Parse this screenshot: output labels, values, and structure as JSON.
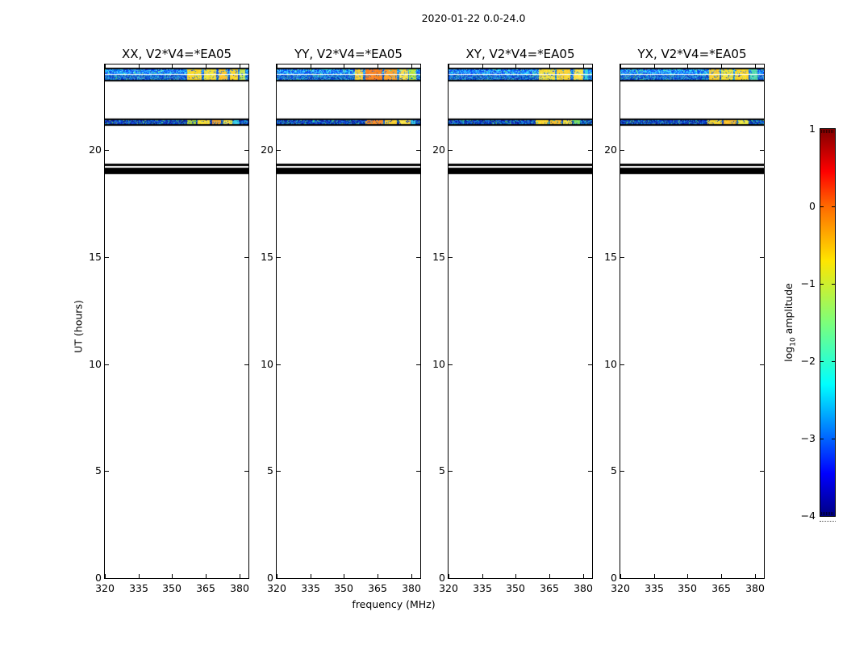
{
  "chart_data": {
    "type": "heatmap",
    "suptitle": "2020-01-22 0.0-24.0",
    "xlabel": "frequency (MHz)",
    "ylabel": "UT (hours)",
    "xlim": [
      320,
      384
    ],
    "ylim": [
      0,
      24
    ],
    "x_ticks": [
      320,
      335,
      350,
      365,
      380
    ],
    "x_tick_labels": [
      "320",
      "335",
      "350",
      "365",
      "380"
    ],
    "y_ticks": [
      0,
      5,
      10,
      15,
      20
    ],
    "y_tick_labels": [
      "0",
      "5",
      "10",
      "15",
      "20"
    ],
    "grid": false,
    "background_color": "#ffffff",
    "colorbar": {
      "label_prefix": "log",
      "label_sub": "10",
      "label_suffix": " amplitude",
      "colormap": "jet",
      "vmin": -4,
      "vmax": 1,
      "ticks": [
        1,
        0,
        -1,
        -2,
        -3,
        -4
      ],
      "tick_labels": [
        "1",
        "0",
        "−1",
        "−2",
        "−3",
        "−4"
      ],
      "gradient_stops": [
        [
          0.0,
          "#000083"
        ],
        [
          0.11,
          "#0000ff"
        ],
        [
          0.34,
          "#00ffff"
        ],
        [
          0.5,
          "#7dff7a"
        ],
        [
          0.66,
          "#ffe500"
        ],
        [
          0.8,
          "#ff6a00"
        ],
        [
          0.89,
          "#ff0000"
        ],
        [
          1.0,
          "#800000"
        ]
      ]
    },
    "speckle_palettes": {
      "bright": [
        "#0a2fd0",
        "#0848e8",
        "#1e6bff",
        "#3f9bff",
        "#27c4f0",
        "#0b59f0",
        "#55d4e8",
        "#123cb8",
        "#0877ff",
        "#1fa9f2"
      ],
      "dark": [
        "#071d90",
        "#0a33c0",
        "#1145d6",
        "#0a57e0",
        "#16318f",
        "#2b6ce0",
        "#0d2aa8",
        "#1aa8d8"
      ],
      "flecks": [
        "#3fae62",
        "#6fd14e",
        "#35d3c8"
      ]
    },
    "common_features": [
      {
        "kind": "solid",
        "ut": [
          19.25,
          19.36
        ],
        "color": "#000000"
      },
      {
        "kind": "solid",
        "ut": [
          18.88,
          19.16
        ],
        "color": "#000000"
      }
    ],
    "panels": [
      {
        "name": "XX",
        "title": "XX, V2*V4=*EA05",
        "bands": [
          {
            "ut": [
              23.21,
              23.85
            ],
            "base": "bright",
            "base_log10_amp": -2.8,
            "white_line_ut": 23.53,
            "border_px": 2,
            "segments": [
              [
                356.5,
                363.2,
                "#ffd92e",
                -0.6
              ],
              [
                364.2,
                369.6,
                "#f2e23c",
                -0.75
              ],
              [
                370.6,
                374.6,
                "#ffc72e",
                -0.45
              ],
              [
                375.6,
                379.2,
                "#ffd92e",
                -0.6
              ],
              [
                380.2,
                382.6,
                "#c9ea55",
                -1.0
              ]
            ]
          },
          {
            "ut": [
              21.14,
              21.48
            ],
            "base": "dark",
            "base_log10_amp": -3.2,
            "white_line_ut": null,
            "border_px": 2,
            "segments": [
              [
                356.5,
                360.6,
                "#b2df3a",
                -1.1
              ],
              [
                361.2,
                366.8,
                "#ffdf38",
                -0.65
              ],
              [
                367.8,
                371.8,
                "#ffaa2e",
                -0.3
              ],
              [
                372.8,
                376.8,
                "#ffe04a",
                -0.7
              ],
              [
                377.2,
                379.8,
                "#38d0e8",
                -1.9
              ]
            ]
          }
        ]
      },
      {
        "name": "YY",
        "title": "YY, V2*V4=*EA05",
        "bands": [
          {
            "ut": [
              23.21,
              23.85
            ],
            "base": "bright",
            "base_log10_amp": -2.8,
            "white_line_ut": 23.53,
            "border_px": 2,
            "segments": [
              [
                355.0,
                358.4,
                "#ffcf3a",
                -0.55
              ],
              [
                359.6,
                367.2,
                "#ff8426",
                -0.1
              ],
              [
                368.0,
                373.6,
                "#ffa430",
                -0.25
              ],
              [
                374.6,
                378.6,
                "#ffe14a",
                -0.7
              ],
              [
                379.0,
                382.2,
                "#b8e844",
                -1.1
              ]
            ]
          },
          {
            "ut": [
              21.14,
              21.48
            ],
            "base": "dark",
            "base_log10_amp": -3.2,
            "white_line_ut": null,
            "border_px": 2,
            "segments": [
              [
                359.6,
                367.4,
                "#ff9028",
                -0.15
              ],
              [
                368.2,
                373.6,
                "#ffd234",
                -0.6
              ],
              [
                374.6,
                379.6,
                "#ffe14a",
                -0.7
              ],
              [
                380.2,
                382.0,
                "#38d0e8",
                -1.9
              ]
            ]
          }
        ]
      },
      {
        "name": "XY",
        "title": "XY, V2*V4=*EA05",
        "bands": [
          {
            "ut": [
              23.21,
              23.85
            ],
            "base": "bright",
            "base_log10_amp": -2.9,
            "white_line_ut": 23.53,
            "border_px": 2,
            "segments": [
              [
                360.2,
                367.4,
                "#f2e240",
                -0.75
              ],
              [
                368.2,
                374.4,
                "#ffd434",
                -0.6
              ],
              [
                375.6,
                380.0,
                "#ffe14a",
                -0.7
              ],
              [
                380.6,
                382.2,
                "#40d8e0",
                -1.9
              ]
            ]
          },
          {
            "ut": [
              21.14,
              21.48
            ],
            "base": "dark",
            "base_log10_amp": -3.2,
            "white_line_ut": null,
            "border_px": 2,
            "segments": [
              [
                359.0,
                364.6,
                "#ffd834",
                -0.6
              ],
              [
                365.2,
                370.2,
                "#ffc22e",
                -0.45
              ],
              [
                371.2,
                375.0,
                "#f2e240",
                -0.75
              ],
              [
                375.6,
                378.6,
                "#7adf66",
                -1.3
              ]
            ]
          }
        ]
      },
      {
        "name": "YX",
        "title": "YX, V2*V4=*EA05",
        "bands": [
          {
            "ut": [
              23.21,
              23.85
            ],
            "base": "bright",
            "base_log10_amp": -2.9,
            "white_line_ut": 23.53,
            "border_px": 2,
            "segments": [
              [
                359.4,
                364.2,
                "#ffcf30",
                -0.55
              ],
              [
                364.8,
                370.2,
                "#f2e23c",
                -0.75
              ],
              [
                371.2,
                377.2,
                "#ffd92e",
                -0.6
              ],
              [
                378.0,
                381.0,
                "#58dcb0",
                -1.6
              ]
            ]
          },
          {
            "ut": [
              21.14,
              21.48
            ],
            "base": "dark",
            "base_log10_amp": -3.2,
            "white_line_ut": null,
            "border_px": 2,
            "segments": [
              [
                359.0,
                365.2,
                "#ffd834",
                -0.6
              ],
              [
                366.0,
                371.6,
                "#ffc22e",
                -0.45
              ],
              [
                372.6,
                377.2,
                "#e8e84a",
                -0.85
              ]
            ]
          }
        ]
      }
    ]
  }
}
